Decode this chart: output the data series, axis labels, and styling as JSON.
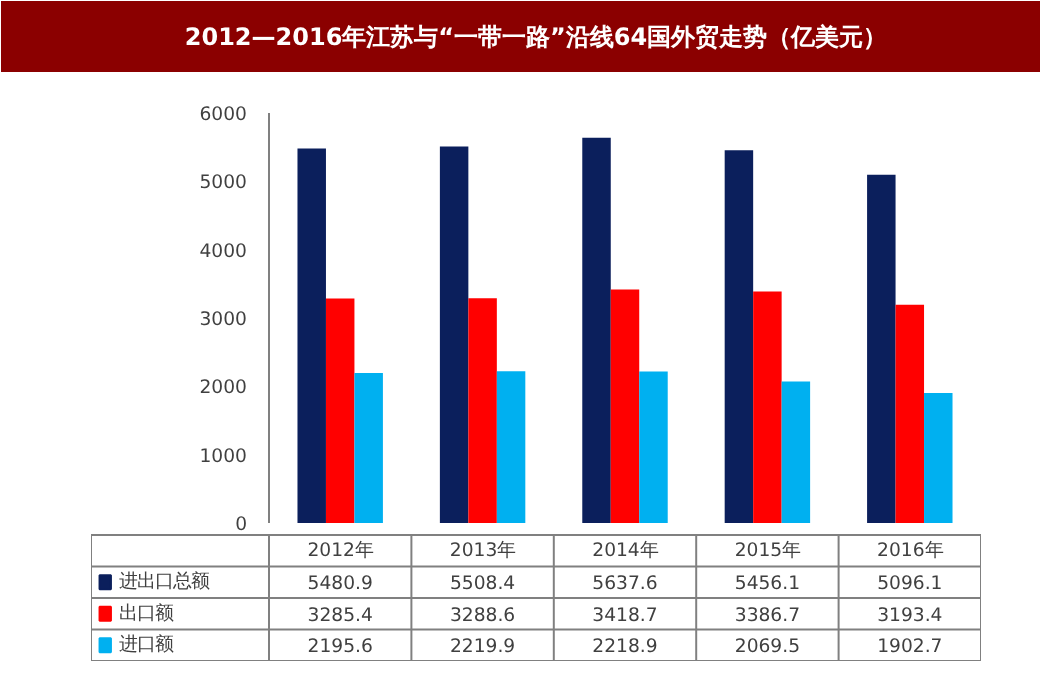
{
  "chart_data": {
    "type": "bar",
    "title": "2012—2016年江苏与“一带一路”沿线64国外贸走势（亿美元）",
    "categories": [
      "2012年",
      "2013年",
      "2014年",
      "2015年",
      "2016年"
    ],
    "series": [
      {
        "name": "进出口总额",
        "color": "#0b1f5c",
        "values": [
          5480.9,
          5508.4,
          5637.6,
          5456.1,
          5096.1
        ]
      },
      {
        "name": "出口额",
        "color": "#ff0000",
        "values": [
          3285.4,
          3288.6,
          3418.7,
          3386.7,
          3193.4
        ]
      },
      {
        "name": "进口额",
        "color": "#00b0f0",
        "values": [
          2195.6,
          2219.9,
          2218.9,
          2069.5,
          1902.7
        ]
      }
    ],
    "ylim": [
      0,
      6000
    ],
    "yticks": [
      0,
      1000,
      2000,
      3000,
      4000,
      5000,
      6000
    ],
    "data_labels": true,
    "legend": "bottom"
  }
}
